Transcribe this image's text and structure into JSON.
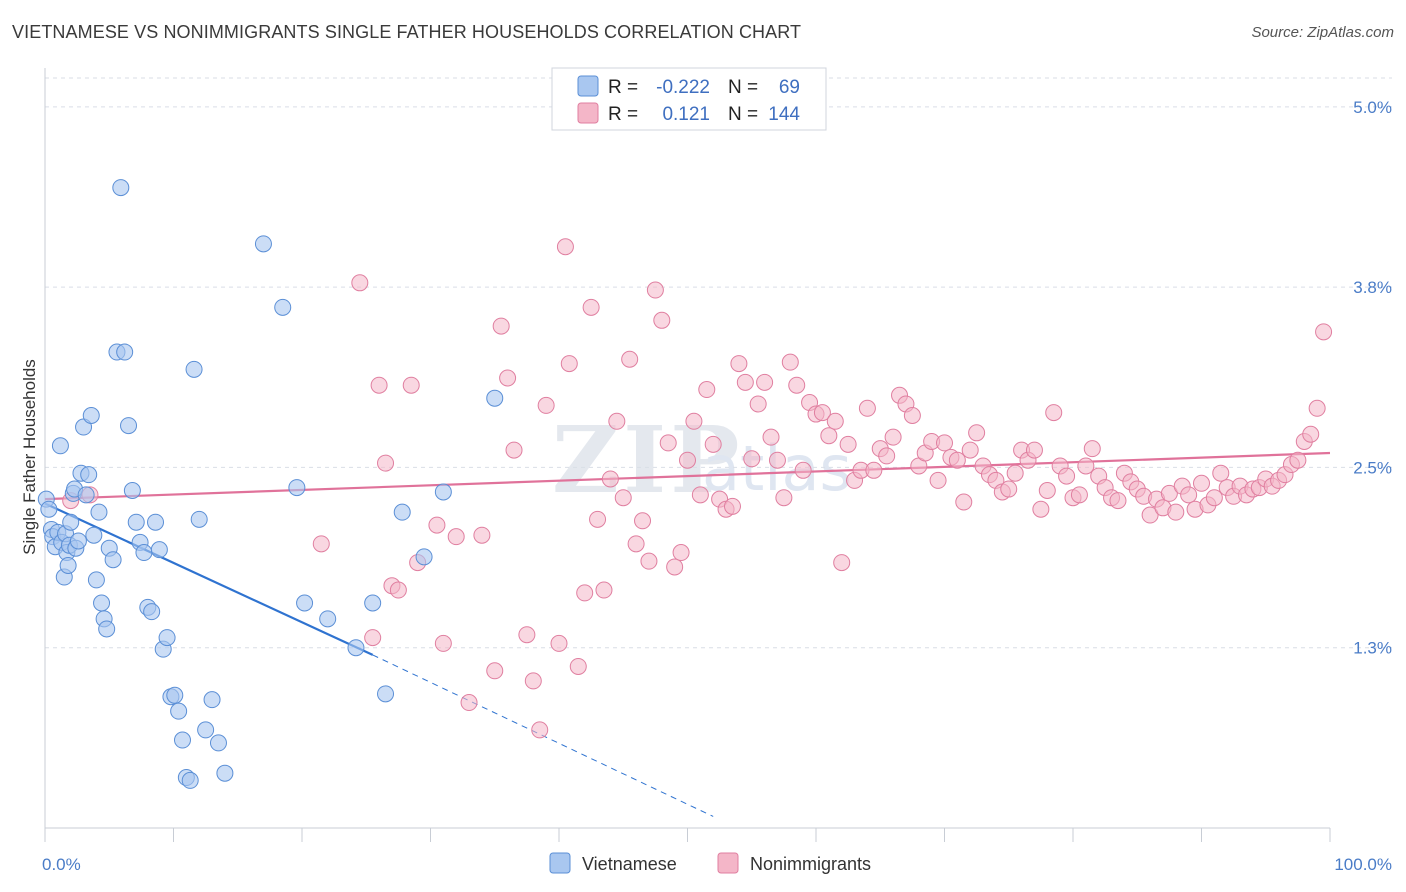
{
  "header": {
    "title": "VIETNAMESE VS NONIMMIGRANTS SINGLE FATHER HOUSEHOLDS CORRELATION CHART",
    "source": "Source: ZipAtlas.com"
  },
  "legend": {
    "rows": [
      {
        "r_label": "R =",
        "r_value": "-0.222",
        "n_label": "N =",
        "n_value": "69",
        "color": "#a9c7f0"
      },
      {
        "r_label": "R =",
        "r_value": "0.121",
        "n_label": "N =",
        "n_value": "144",
        "color": "#f4b6c8"
      }
    ]
  },
  "watermark": {
    "zip": "ZIP",
    "atlas": "atlas"
  },
  "colors": {
    "blue_fill": "#a9c7f0",
    "blue_stroke": "#5b8fd6",
    "blue_line": "#2f73d0",
    "pink_fill": "#f4b6c8",
    "pink_stroke": "#e07fa0",
    "pink_line": "#e0729a",
    "grid": "#d9dee6",
    "tick_text": "#4a7cc7"
  },
  "chart_data": {
    "type": "scatter",
    "title": "VIETNAMESE VS NONIMMIGRANTS SINGLE FATHER HOUSEHOLDS CORRELATION CHART",
    "xlabel": "",
    "ylabel": "Single Father Households",
    "xlim": [
      0,
      100
    ],
    "ylim": [
      0,
      5.2
    ],
    "x_ticks": [
      {
        "value": 0,
        "label": "0.0%"
      },
      {
        "value": 100,
        "label": "100.0%"
      }
    ],
    "y_ticks": [
      {
        "value": 1.25,
        "label": "1.3%"
      },
      {
        "value": 2.5,
        "label": "2.5%"
      },
      {
        "value": 3.75,
        "label": "3.8%"
      },
      {
        "value": 5.0,
        "label": "5.0%"
      }
    ],
    "grid": true,
    "legend_position": "top-center",
    "series": [
      {
        "name": "Vietnamese",
        "color": "#a9c7f0",
        "trend": {
          "x0": 0,
          "y0": 2.25,
          "x1": 25.5,
          "y1": 1.2,
          "dashed_to_x": 52,
          "dashed_to_y": 0.08
        },
        "points": [
          [
            0.1,
            2.28
          ],
          [
            0.3,
            2.21
          ],
          [
            0.5,
            2.07
          ],
          [
            0.6,
            2.02
          ],
          [
            0.8,
            1.95
          ],
          [
            1.0,
            2.05
          ],
          [
            1.2,
            2.65
          ],
          [
            1.3,
            1.98
          ],
          [
            1.5,
            1.74
          ],
          [
            1.6,
            2.04
          ],
          [
            1.7,
            1.91
          ],
          [
            1.8,
            1.82
          ],
          [
            1.9,
            1.96
          ],
          [
            2.0,
            2.12
          ],
          [
            2.2,
            2.32
          ],
          [
            2.3,
            2.35
          ],
          [
            2.4,
            1.94
          ],
          [
            2.6,
            1.99
          ],
          [
            2.8,
            2.46
          ],
          [
            3.0,
            2.78
          ],
          [
            3.2,
            2.31
          ],
          [
            3.4,
            2.45
          ],
          [
            3.6,
            2.86
          ],
          [
            3.8,
            2.03
          ],
          [
            4.0,
            1.72
          ],
          [
            4.2,
            2.19
          ],
          [
            4.4,
            1.56
          ],
          [
            4.6,
            1.45
          ],
          [
            4.8,
            1.38
          ],
          [
            5.0,
            1.94
          ],
          [
            5.3,
            1.86
          ],
          [
            5.6,
            3.3
          ],
          [
            5.9,
            4.44
          ],
          [
            6.2,
            3.3
          ],
          [
            6.5,
            2.79
          ],
          [
            6.8,
            2.34
          ],
          [
            7.1,
            2.12
          ],
          [
            7.4,
            1.98
          ],
          [
            7.7,
            1.91
          ],
          [
            8.0,
            1.53
          ],
          [
            8.3,
            1.5
          ],
          [
            8.6,
            2.12
          ],
          [
            8.9,
            1.93
          ],
          [
            9.2,
            1.24
          ],
          [
            9.5,
            1.32
          ],
          [
            9.8,
            0.91
          ],
          [
            10.1,
            0.92
          ],
          [
            10.4,
            0.81
          ],
          [
            10.7,
            0.61
          ],
          [
            11.0,
            0.35
          ],
          [
            11.3,
            0.33
          ],
          [
            11.6,
            3.18
          ],
          [
            12.0,
            2.14
          ],
          [
            12.5,
            0.68
          ],
          [
            13.0,
            0.89
          ],
          [
            13.5,
            0.59
          ],
          [
            14.0,
            0.38
          ],
          [
            17.0,
            4.05
          ],
          [
            18.5,
            3.61
          ],
          [
            19.6,
            2.36
          ],
          [
            20.2,
            1.56
          ],
          [
            22.0,
            1.45
          ],
          [
            24.2,
            1.25
          ],
          [
            25.5,
            1.56
          ],
          [
            26.5,
            0.93
          ],
          [
            27.8,
            2.19
          ],
          [
            29.5,
            1.88
          ],
          [
            31.0,
            2.33
          ],
          [
            35.0,
            2.98
          ]
        ]
      },
      {
        "name": "Nonimmigrants",
        "color": "#f4b6c8",
        "trend": {
          "x0": 0,
          "y0": 2.28,
          "x1": 100,
          "y1": 2.6
        },
        "points": [
          [
            21.5,
            1.97
          ],
          [
            24.5,
            3.78
          ],
          [
            25.5,
            1.32
          ],
          [
            26.0,
            3.07
          ],
          [
            26.5,
            2.53
          ],
          [
            27.0,
            1.68
          ],
          [
            27.5,
            1.65
          ],
          [
            28.5,
            3.07
          ],
          [
            29.0,
            1.84
          ],
          [
            30.5,
            2.1
          ],
          [
            31.0,
            1.28
          ],
          [
            32.0,
            2.02
          ],
          [
            33.0,
            0.87
          ],
          [
            34.0,
            2.03
          ],
          [
            35.0,
            1.09
          ],
          [
            35.5,
            3.48
          ],
          [
            36.0,
            3.12
          ],
          [
            36.5,
            2.62
          ],
          [
            37.5,
            1.34
          ],
          [
            38.0,
            1.02
          ],
          [
            38.5,
            0.68
          ],
          [
            39.0,
            2.93
          ],
          [
            40.0,
            1.28
          ],
          [
            40.5,
            4.03
          ],
          [
            40.8,
            3.22
          ],
          [
            41.5,
            1.12
          ],
          [
            42.0,
            1.63
          ],
          [
            42.5,
            3.61
          ],
          [
            43.0,
            2.14
          ],
          [
            43.5,
            1.65
          ],
          [
            44.0,
            2.42
          ],
          [
            44.5,
            2.82
          ],
          [
            45.0,
            2.29
          ],
          [
            45.5,
            3.25
          ],
          [
            46.0,
            1.97
          ],
          [
            46.5,
            2.13
          ],
          [
            47.0,
            1.85
          ],
          [
            47.5,
            3.73
          ],
          [
            48.0,
            3.52
          ],
          [
            48.5,
            2.67
          ],
          [
            49.0,
            1.81
          ],
          [
            49.5,
            1.91
          ],
          [
            50.0,
            2.55
          ],
          [
            50.5,
            2.82
          ],
          [
            51.0,
            2.31
          ],
          [
            51.5,
            3.04
          ],
          [
            52.0,
            2.66
          ],
          [
            52.5,
            2.28
          ],
          [
            53.0,
            2.21
          ],
          [
            53.5,
            2.23
          ],
          [
            54.0,
            3.22
          ],
          [
            54.5,
            3.09
          ],
          [
            55.0,
            2.56
          ],
          [
            55.5,
            2.94
          ],
          [
            56.0,
            3.09
          ],
          [
            56.5,
            2.71
          ],
          [
            57.0,
            2.55
          ],
          [
            57.5,
            2.29
          ],
          [
            58.0,
            3.23
          ],
          [
            58.5,
            3.07
          ],
          [
            59.0,
            2.48
          ],
          [
            59.5,
            2.95
          ],
          [
            60.0,
            2.87
          ],
          [
            60.5,
            2.88
          ],
          [
            61.0,
            2.72
          ],
          [
            61.5,
            2.82
          ],
          [
            62.0,
            1.84
          ],
          [
            62.5,
            2.66
          ],
          [
            63.0,
            2.41
          ],
          [
            63.5,
            2.48
          ],
          [
            64.0,
            2.91
          ],
          [
            64.5,
            2.48
          ],
          [
            65.0,
            2.63
          ],
          [
            65.5,
            2.58
          ],
          [
            66.0,
            2.71
          ],
          [
            66.5,
            3.0
          ],
          [
            67.0,
            2.94
          ],
          [
            67.5,
            2.86
          ],
          [
            68.0,
            2.51
          ],
          [
            68.5,
            2.6
          ],
          [
            69.0,
            2.68
          ],
          [
            69.5,
            2.41
          ],
          [
            70.0,
            2.67
          ],
          [
            70.5,
            2.57
          ],
          [
            71.0,
            2.55
          ],
          [
            71.5,
            2.26
          ],
          [
            72.0,
            2.62
          ],
          [
            72.5,
            2.74
          ],
          [
            73.0,
            2.51
          ],
          [
            73.5,
            2.45
          ],
          [
            74.0,
            2.41
          ],
          [
            74.5,
            2.33
          ],
          [
            75.0,
            2.35
          ],
          [
            75.5,
            2.46
          ],
          [
            76.0,
            2.62
          ],
          [
            76.5,
            2.55
          ],
          [
            77.0,
            2.62
          ],
          [
            77.5,
            2.21
          ],
          [
            78.0,
            2.34
          ],
          [
            78.5,
            2.88
          ],
          [
            79.0,
            2.51
          ],
          [
            79.5,
            2.44
          ],
          [
            80.0,
            2.29
          ],
          [
            80.5,
            2.31
          ],
          [
            81.0,
            2.51
          ],
          [
            81.5,
            2.63
          ],
          [
            82.0,
            2.44
          ],
          [
            82.5,
            2.36
          ],
          [
            83.0,
            2.29
          ],
          [
            83.5,
            2.27
          ],
          [
            84.0,
            2.46
          ],
          [
            84.5,
            2.4
          ],
          [
            85.0,
            2.35
          ],
          [
            85.5,
            2.3
          ],
          [
            86.0,
            2.17
          ],
          [
            86.5,
            2.28
          ],
          [
            87.0,
            2.22
          ],
          [
            87.5,
            2.32
          ],
          [
            88.0,
            2.19
          ],
          [
            88.5,
            2.37
          ],
          [
            89.0,
            2.31
          ],
          [
            89.5,
            2.21
          ],
          [
            90.0,
            2.39
          ],
          [
            90.5,
            2.24
          ],
          [
            91.0,
            2.29
          ],
          [
            91.5,
            2.46
          ],
          [
            92.0,
            2.36
          ],
          [
            92.5,
            2.3
          ],
          [
            93.0,
            2.37
          ],
          [
            93.5,
            2.31
          ],
          [
            94.0,
            2.35
          ],
          [
            94.5,
            2.36
          ],
          [
            95.0,
            2.42
          ],
          [
            95.5,
            2.37
          ],
          [
            96.0,
            2.41
          ],
          [
            96.5,
            2.45
          ],
          [
            97.0,
            2.52
          ],
          [
            97.5,
            2.55
          ],
          [
            98.0,
            2.68
          ],
          [
            98.5,
            2.73
          ],
          [
            99.0,
            2.91
          ],
          [
            99.5,
            3.44
          ],
          [
            2.0,
            2.27
          ],
          [
            3.5,
            2.31
          ]
        ]
      }
    ]
  },
  "bottom_legend": [
    {
      "label": "Vietnamese",
      "color": "#a9c7f0"
    },
    {
      "label": "Nonimmigrants",
      "color": "#f4b6c8"
    }
  ]
}
